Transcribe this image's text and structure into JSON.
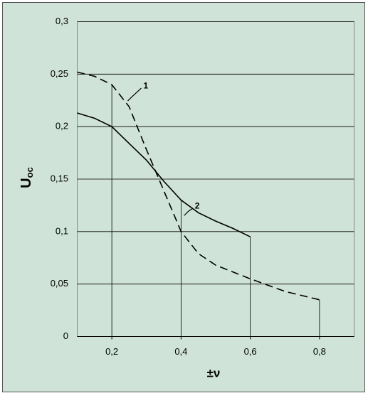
{
  "chart_data": {
    "type": "line",
    "xlabel": "±ν",
    "ylabel": "U",
    "ylabel_sub": "oc",
    "series": [
      {
        "name": "1",
        "color": "#000000",
        "dashed": true,
        "x": [
          0.1,
          0.15,
          0.2,
          0.25,
          0.3,
          0.35,
          0.4,
          0.45,
          0.5,
          0.6,
          0.7,
          0.8
        ],
        "values": [
          0.252,
          0.248,
          0.24,
          0.219,
          0.178,
          0.139,
          0.1,
          0.079,
          0.068,
          0.055,
          0.043,
          0.035
        ]
      },
      {
        "name": "2",
        "color": "#000000",
        "dashed": false,
        "x": [
          0.1,
          0.15,
          0.2,
          0.25,
          0.3,
          0.35,
          0.4,
          0.45,
          0.5,
          0.55,
          0.6
        ],
        "values": [
          0.213,
          0.208,
          0.2,
          0.184,
          0.168,
          0.148,
          0.13,
          0.118,
          0.11,
          0.103,
          0.095
        ]
      }
    ],
    "xlim": [
      0.1,
      0.9
    ],
    "ylim": [
      0,
      0.3
    ],
    "xticks": [
      {
        "value": 0.2,
        "label": "0,2"
      },
      {
        "value": 0.4,
        "label": "0,4"
      },
      {
        "value": 0.6,
        "label": "0,6"
      },
      {
        "value": 0.8,
        "label": "0,8"
      }
    ],
    "yticks": [
      0,
      {
        "value": 0.05,
        "label": "0,05"
      },
      {
        "value": 0.1,
        "label": "0,1"
      },
      {
        "value": 0.15,
        "label": "0,15"
      },
      {
        "value": 0.2,
        "label": "0,2"
      },
      {
        "value": 0.25,
        "label": "0,25"
      },
      {
        "value": 0.3,
        "label": "0,3"
      }
    ],
    "grid": true,
    "drop_lines": true
  }
}
